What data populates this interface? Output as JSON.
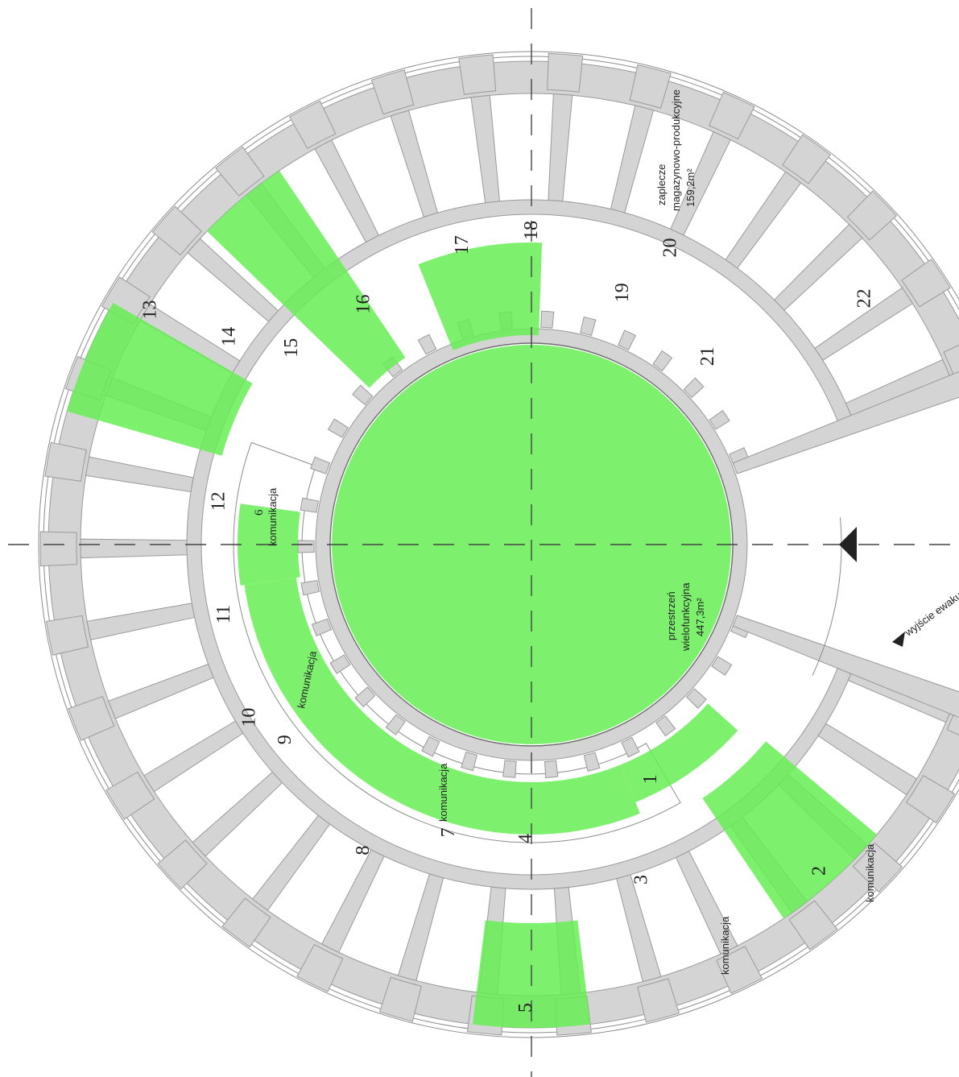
{
  "rooms": [
    {
      "id": "r1",
      "number": "1",
      "angle": 62,
      "radius": 330
    },
    {
      "id": "r2",
      "number": "2",
      "angle": 48,
      "radius": 545
    },
    {
      "id": "r3",
      "number": "3",
      "angle": 71,
      "radius": 440
    },
    {
      "id": "r4",
      "number": "4",
      "angle": 90,
      "radius": 365
    },
    {
      "id": "r5",
      "number": "5",
      "angle": 90,
      "radius": 575
    },
    {
      "id": "r7",
      "number": "7",
      "angle": 105,
      "radius": 370
    },
    {
      "id": "r8",
      "number": "8",
      "angle": 118,
      "radius": 430
    },
    {
      "id": "r9",
      "number": "9",
      "angle": 141,
      "radius": 385
    },
    {
      "id": "r10",
      "number": "10",
      "angle": 148,
      "radius": 405
    },
    {
      "id": "r11",
      "number": "11",
      "angle": 167,
      "radius": 385
    },
    {
      "id": "r12",
      "number": "12",
      "angle": -172,
      "radius": 385
    },
    {
      "id": "r13",
      "number": "13",
      "angle": -148,
      "radius": 550
    },
    {
      "id": "r14",
      "number": "14",
      "angle": -145,
      "radius": 450
    },
    {
      "id": "r15",
      "number": "15",
      "angle": -140,
      "radius": 380
    },
    {
      "id": "r16",
      "number": "16",
      "angle": -124,
      "radius": 360
    },
    {
      "id": "r17",
      "number": "17",
      "angle": -102,
      "radius": 380
    },
    {
      "id": "r18",
      "number": "18",
      "angle": -89,
      "radius": 390
    },
    {
      "id": "r19",
      "number": "19",
      "angle": -69,
      "radius": 335
    },
    {
      "id": "r20",
      "number": "20",
      "angle": -64,
      "radius": 410
    },
    {
      "id": "r21",
      "number": "21",
      "angle": -46,
      "radius": 325
    },
    {
      "id": "r22",
      "number": "22",
      "angle": -36,
      "radius": 520
    }
  ],
  "labels": {
    "multipurpose_name": "przestrzeń",
    "multipurpose_name2": "wielofunkcyjna",
    "multipurpose_area": "447,3m²",
    "storage_line1": "zaplecze",
    "storage_line2": "magazynowo-produkcyjne",
    "storage_area": "159,2m²",
    "corridor": "komunikacja",
    "room6": "6",
    "exit": "wyjście ewaku"
  },
  "colors": {
    "green_fill": "#66ee55",
    "wall": "#d4d4d4",
    "line": "#6e6e6e"
  },
  "icons": [
    "entrance-arrow-icon",
    "evacuation-arrow-icon"
  ]
}
